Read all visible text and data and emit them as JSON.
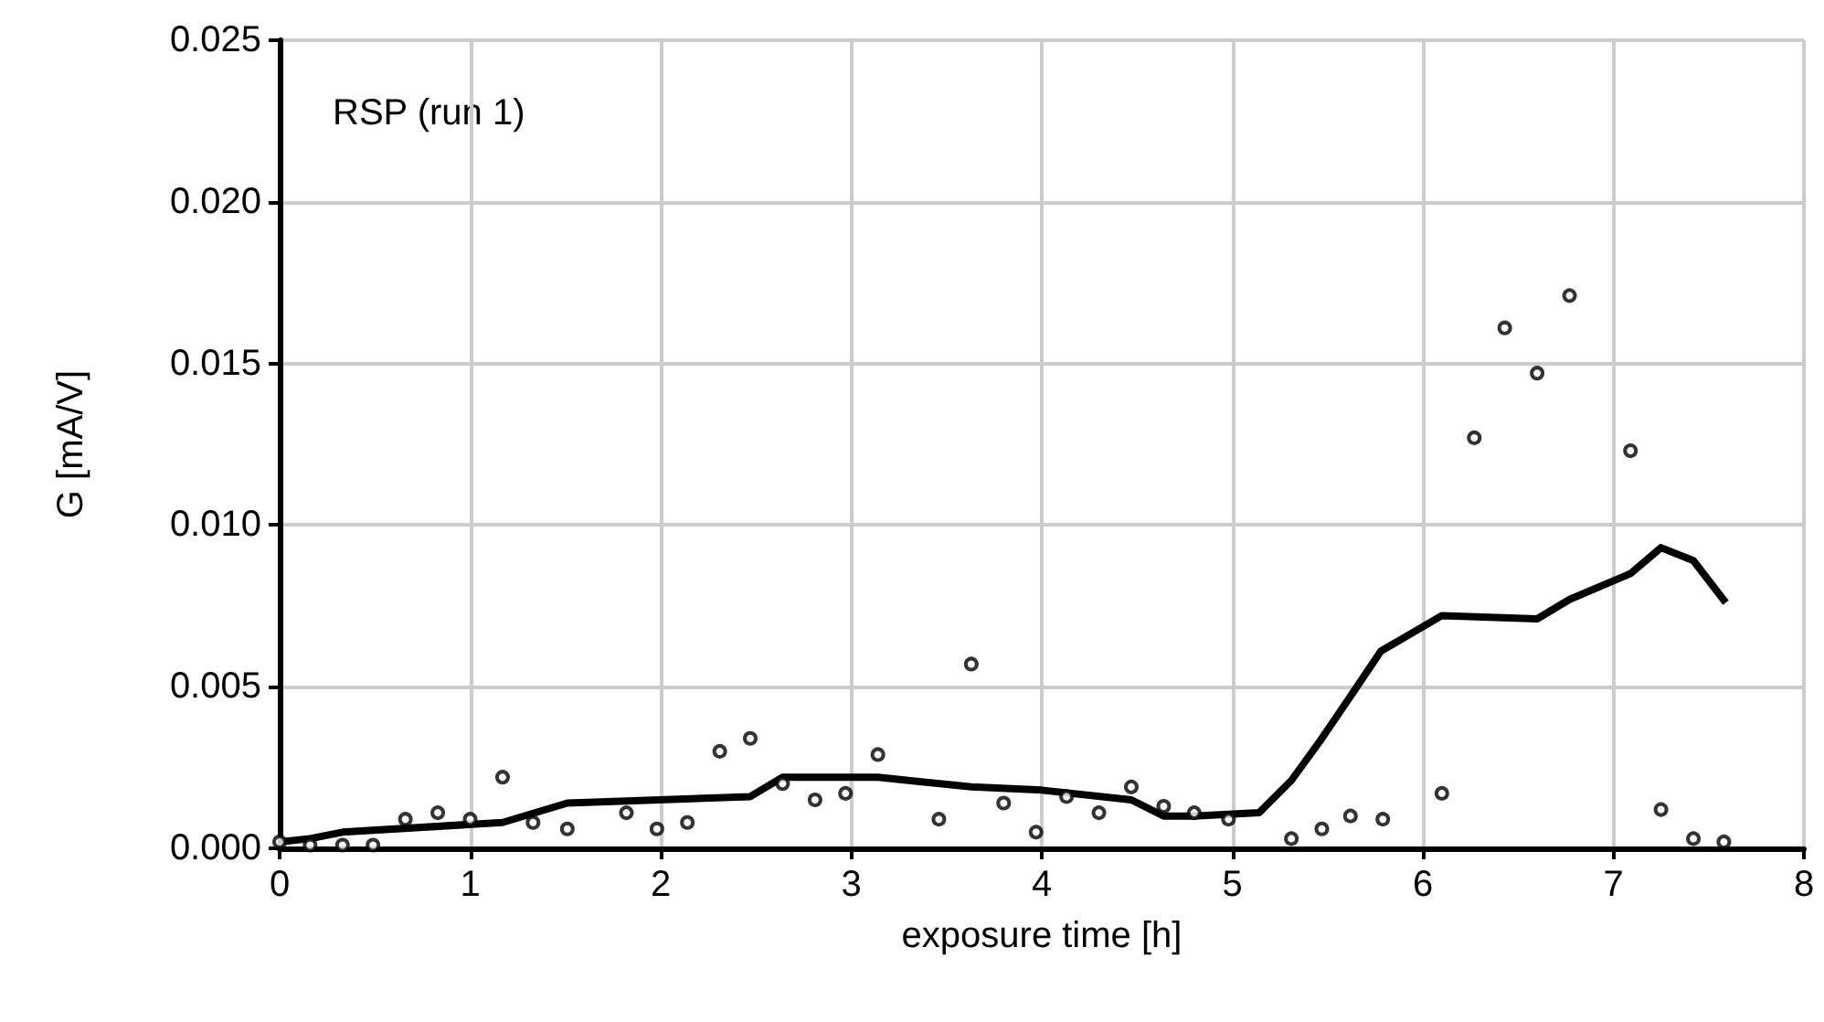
{
  "chart_data": {
    "type": "scatter",
    "xlabel": "exposure time [h]",
    "ylabel": "G [mA/V]",
    "annotations": [
      "RSP (run 1)"
    ],
    "xlim": [
      0,
      8
    ],
    "xticks": [
      0,
      1,
      2,
      3,
      4,
      5,
      6,
      7,
      8
    ],
    "ylim": [
      0,
      0.025
    ],
    "yticks": [
      {
        "value": 0,
        "label": "0.000"
      },
      {
        "value": 0.005,
        "label": "0.005"
      },
      {
        "value": 0.01,
        "label": "0.010"
      },
      {
        "value": 0.015,
        "label": "0.015"
      },
      {
        "value": 0.02,
        "label": "0.020"
      },
      {
        "value": 0.025,
        "label": "0.025"
      }
    ],
    "grid": true,
    "series": [
      {
        "color": "#000000",
        "marker": "circle",
        "x": [
          0,
          0.16,
          0.33,
          0.49,
          0.66,
          0.83,
          1.0,
          1.17,
          1.33,
          1.51,
          1.82,
          1.98,
          2.14,
          2.31,
          2.47,
          2.64,
          2.81,
          2.97,
          3.14,
          3.46,
          3.63,
          3.8,
          3.97,
          4.13,
          4.3,
          4.47,
          4.64,
          4.8,
          4.98,
          5.31,
          5.47,
          5.62,
          5.79,
          6.1,
          6.27,
          6.43,
          6.6,
          6.77,
          7.09,
          7.25,
          7.42,
          7.58
        ],
        "values": [
          0.0002,
          0.0001,
          0.0001,
          0.0001,
          0.0009,
          0.0011,
          0.0009,
          0.0022,
          0.0008,
          0.0006,
          0.0011,
          0.0006,
          0.0008,
          0.003,
          0.0034,
          0.002,
          0.0015,
          0.0017,
          0.0029,
          0.0009,
          0.0057,
          0.0014,
          0.0005,
          0.0016,
          0.0011,
          0.0019,
          0.0013,
          0.0011,
          0.0009,
          0.0003,
          0.0006,
          0.001,
          0.0009,
          0.0017,
          0.0127,
          0.0161,
          0.0147,
          0.0171,
          0.0123,
          0.0012,
          0.0003,
          0.0002
        ]
      },
      {
        "type": "line",
        "color": "#000000",
        "marker": "none",
        "line_style": "solid",
        "x": [
          0,
          0.16,
          0.33,
          1.17,
          1.51,
          2.47,
          2.64,
          3.14,
          3.63,
          4.0,
          4.47,
          4.64,
          4.8,
          5.14,
          5.31,
          5.47,
          5.62,
          5.78,
          6.1,
          6.6,
          6.77,
          7.09,
          7.25,
          7.42,
          7.59
        ],
        "values": [
          0.0002,
          0.0003,
          0.0005,
          0.0008,
          0.0014,
          0.0016,
          0.0022,
          0.0022,
          0.0019,
          0.0018,
          0.0015,
          0.001,
          0.001,
          0.0011,
          0.0021,
          0.0034,
          0.0047,
          0.0061,
          0.0072,
          0.0071,
          0.0077,
          0.0085,
          0.0093,
          0.0089,
          0.0076
        ]
      }
    ]
  }
}
